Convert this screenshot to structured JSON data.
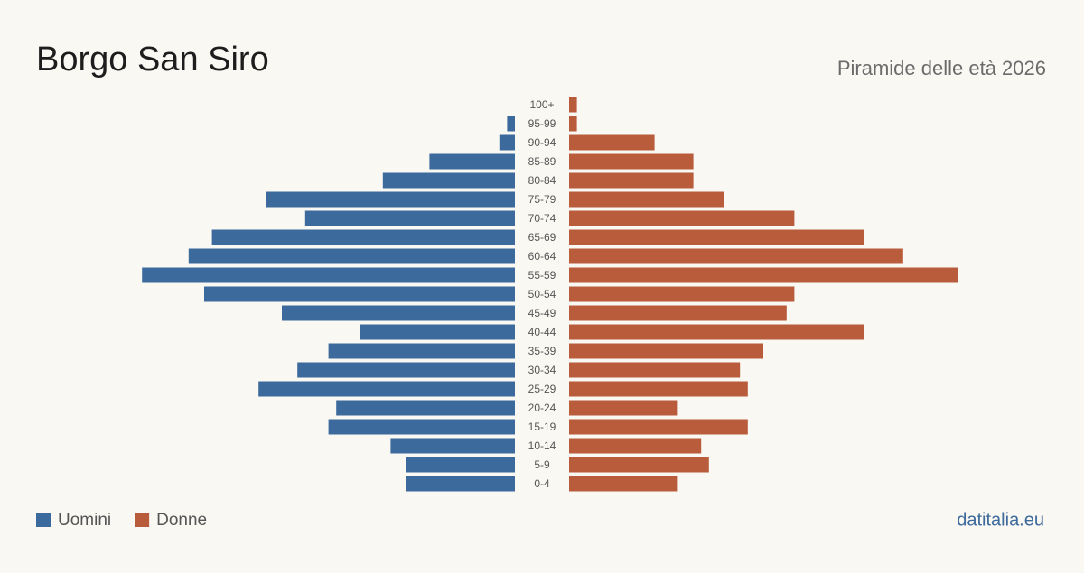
{
  "chart_data": {
    "type": "pyramid",
    "title": "Borgo San Siro",
    "subtitle": "Piramide delle età 2026",
    "source": "datitalia.eu",
    "categories": [
      "100+",
      "95-99",
      "90-94",
      "85-89",
      "80-84",
      "75-79",
      "70-74",
      "65-69",
      "60-64",
      "55-59",
      "50-54",
      "45-49",
      "40-44",
      "35-39",
      "30-34",
      "25-29",
      "20-24",
      "15-19",
      "10-14",
      "5-9",
      "0-4"
    ],
    "xlim": [
      0,
      50
    ],
    "series": [
      {
        "name": "Uomini",
        "color": "#3d6a9c",
        "values": [
          0,
          1,
          2,
          11,
          17,
          32,
          27,
          39,
          42,
          48,
          40,
          30,
          20,
          24,
          28,
          33,
          23,
          24,
          16,
          14,
          14
        ]
      },
      {
        "name": "Donne",
        "color": "#b95c3c",
        "values": [
          1,
          1,
          11,
          16,
          16,
          20,
          29,
          38,
          43,
          50,
          29,
          28,
          38,
          25,
          22,
          23,
          14,
          23,
          17,
          18,
          14
        ]
      }
    ]
  }
}
